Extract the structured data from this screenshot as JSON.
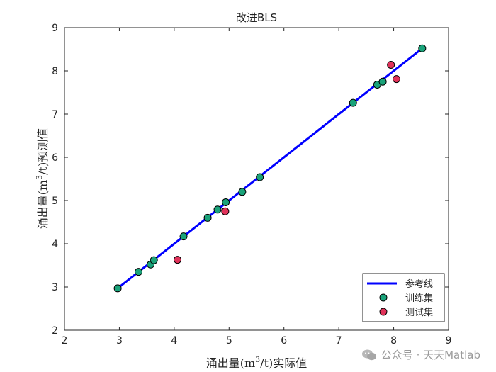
{
  "chart_data": {
    "type": "scatter",
    "title": "改进BLS",
    "xlabel_pre": "涌出量(m",
    "xlabel_sup": "3",
    "xlabel_post": "/t)实际值",
    "ylabel_pre": "涌出量(m",
    "ylabel_sup": "3",
    "ylabel_post": "/t)预测值",
    "xlim": [
      2,
      9
    ],
    "ylim": [
      2,
      9
    ],
    "xticks": [
      2,
      3,
      4,
      5,
      6,
      7,
      8,
      9
    ],
    "yticks": [
      2,
      3,
      4,
      5,
      6,
      7,
      8,
      9
    ],
    "grid": false,
    "legend_placement": "bottom-right",
    "reference_line": {
      "name": "参考线",
      "color": "#0000ff",
      "x": [
        2.97,
        8.52
      ],
      "y": [
        2.97,
        8.52
      ]
    },
    "series": [
      {
        "name": "训练集",
        "color": "#1aa37a",
        "points": [
          [
            2.97,
            2.97
          ],
          [
            3.35,
            3.35
          ],
          [
            3.57,
            3.52
          ],
          [
            3.63,
            3.62
          ],
          [
            4.17,
            4.17
          ],
          [
            4.61,
            4.6
          ],
          [
            4.79,
            4.79
          ],
          [
            4.94,
            4.96
          ],
          [
            5.24,
            5.2
          ],
          [
            5.56,
            5.54
          ],
          [
            7.26,
            7.26
          ],
          [
            7.7,
            7.68
          ],
          [
            7.8,
            7.75
          ],
          [
            8.52,
            8.52
          ]
        ]
      },
      {
        "name": "测试集",
        "color": "#e0325a",
        "points": [
          [
            4.06,
            3.63
          ],
          [
            4.93,
            4.75
          ],
          [
            7.95,
            8.14
          ],
          [
            8.05,
            7.81
          ]
        ]
      }
    ]
  },
  "watermark": {
    "text": "公众号 · 天天Matlab",
    "icon": "wechat-icon"
  }
}
